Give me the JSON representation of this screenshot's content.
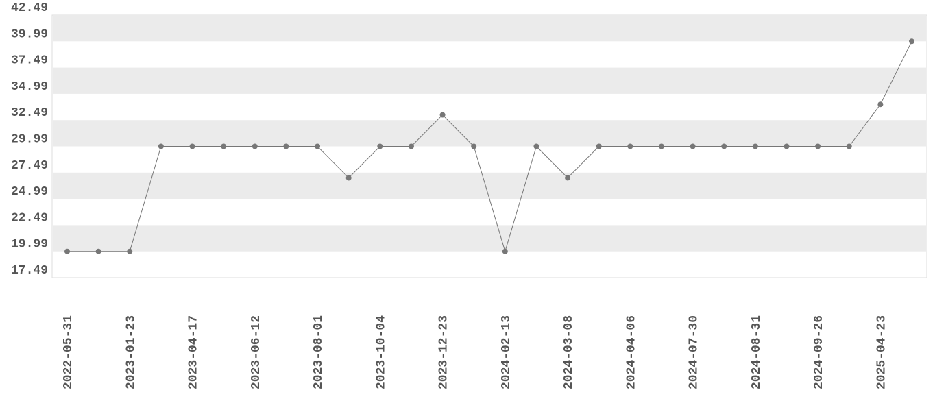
{
  "chart_data": {
    "type": "line",
    "categories": [
      "2022-05-31",
      null,
      "2023-01-23",
      null,
      "2023-04-17",
      null,
      "2023-06-12",
      null,
      "2023-08-01",
      null,
      "2023-10-04",
      null,
      "2023-12-23",
      null,
      "2024-02-13",
      null,
      "2024-03-08",
      null,
      "2024-04-06",
      null,
      "2024-07-30",
      null,
      "2024-08-31",
      null,
      "2024-09-26",
      null,
      "2025-04-23",
      null
    ],
    "values": [
      19.99,
      19.99,
      19.99,
      29.99,
      29.99,
      29.99,
      29.99,
      29.99,
      29.99,
      26.99,
      29.99,
      29.99,
      32.99,
      29.99,
      19.99,
      29.99,
      26.99,
      29.99,
      29.99,
      29.99,
      29.99,
      29.99,
      29.99,
      29.99,
      29.99,
      29.99,
      33.99,
      39.99
    ],
    "color": "#777777",
    "ylim": [
      17.49,
      42.49
    ],
    "yticks": [
      17.49,
      19.99,
      22.49,
      24.99,
      27.49,
      29.99,
      32.49,
      34.99,
      37.49,
      39.99,
      42.49
    ],
    "grid": "bands"
  }
}
